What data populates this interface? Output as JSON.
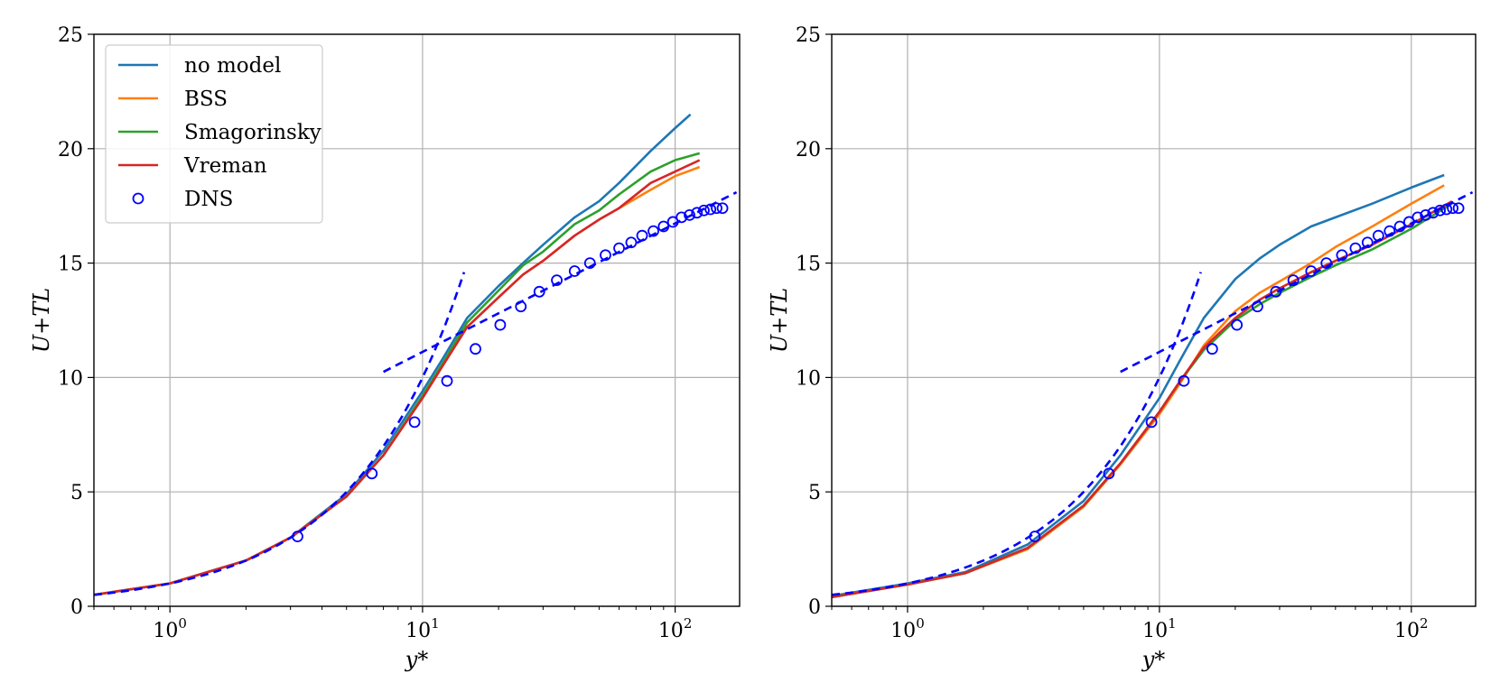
{
  "chart_data": [
    {
      "type": "line",
      "xscale": "log",
      "xlim": [
        0.5,
        180
      ],
      "ylim": [
        0,
        25
      ],
      "xlabel": "y*",
      "ylabel": "U+TL",
      "xticks": [
        {
          "v": 1,
          "label": "10",
          "exp": "0"
        },
        {
          "v": 10,
          "label": "10",
          "exp": "1"
        },
        {
          "v": 100,
          "label": "10",
          "exp": "2"
        }
      ],
      "yticks": [
        0,
        5,
        10,
        15,
        20,
        25
      ],
      "grid": true,
      "legend": {
        "position": "top-left"
      },
      "series": [
        {
          "name": "no model",
          "color": "#1f77b4",
          "x": [
            0.5,
            1,
            2,
            3,
            5,
            7,
            10,
            12,
            15,
            20,
            25,
            30,
            40,
            50,
            60,
            80,
            100,
            115
          ],
          "y": [
            0.5,
            1.0,
            2.0,
            3.0,
            4.9,
            6.8,
            9.4,
            10.8,
            12.6,
            14.0,
            15.0,
            15.8,
            17.0,
            17.7,
            18.5,
            19.9,
            20.9,
            21.5
          ]
        },
        {
          "name": "BSS",
          "color": "#ff7f0e",
          "x": [
            0.5,
            1,
            2,
            3,
            5,
            7,
            10,
            12,
            15,
            20,
            25,
            30,
            40,
            50,
            60,
            80,
            100,
            125
          ],
          "y": [
            0.5,
            1.0,
            2.0,
            3.0,
            4.8,
            6.6,
            9.1,
            10.5,
            12.2,
            13.5,
            14.5,
            15.1,
            16.2,
            16.9,
            17.4,
            18.2,
            18.8,
            19.2
          ]
        },
        {
          "name": "Smagorinsky",
          "color": "#2ca02c",
          "x": [
            0.5,
            1,
            2,
            3,
            5,
            7,
            10,
            12,
            15,
            20,
            25,
            30,
            40,
            50,
            60,
            80,
            100,
            125
          ],
          "y": [
            0.5,
            1.0,
            2.0,
            3.0,
            4.8,
            6.6,
            9.2,
            10.6,
            12.4,
            13.8,
            14.9,
            15.5,
            16.7,
            17.3,
            18.0,
            19.0,
            19.5,
            19.8
          ]
        },
        {
          "name": "Vreman",
          "color": "#d62728",
          "x": [
            0.5,
            1,
            2,
            3,
            5,
            7,
            10,
            12,
            15,
            20,
            25,
            30,
            40,
            50,
            60,
            80,
            100,
            125
          ],
          "y": [
            0.5,
            1.0,
            2.0,
            3.0,
            4.8,
            6.6,
            9.1,
            10.5,
            12.2,
            13.5,
            14.5,
            15.1,
            16.2,
            16.9,
            17.4,
            18.5,
            19.0,
            19.5
          ]
        }
      ],
      "dns": {
        "name": "DNS",
        "color": "#0000ff",
        "x": [
          3.2,
          6.3,
          9.3,
          12.5,
          16.2,
          20.3,
          24.5,
          29,
          34,
          40,
          46,
          53,
          60,
          67,
          74,
          82,
          90,
          98,
          106,
          114,
          122,
          130,
          138,
          146,
          154
        ],
        "y": [
          3.05,
          5.8,
          8.05,
          9.85,
          11.25,
          12.3,
          13.1,
          13.75,
          14.25,
          14.65,
          15.0,
          15.35,
          15.65,
          15.9,
          16.2,
          16.4,
          16.6,
          16.8,
          17.0,
          17.1,
          17.2,
          17.3,
          17.35,
          17.4,
          17.4
        ]
      },
      "reference_lines": [
        {
          "kind": "viscous",
          "color": "#0000ff",
          "x_from": 0.5,
          "x_to": 14.6
        },
        {
          "kind": "log",
          "color": "#0000ff",
          "x_from": 7,
          "x_to": 175,
          "kappa": 0.41,
          "B": 5.5
        }
      ]
    },
    {
      "type": "line",
      "xscale": "log",
      "xlim": [
        0.5,
        180
      ],
      "ylim": [
        0,
        25
      ],
      "xlabel": "y*",
      "ylabel": "U+TL",
      "xticks": [
        {
          "v": 1,
          "label": "10",
          "exp": "0"
        },
        {
          "v": 10,
          "label": "10",
          "exp": "1"
        },
        {
          "v": 100,
          "label": "10",
          "exp": "2"
        }
      ],
      "yticks": [
        0,
        5,
        10,
        15,
        20,
        25
      ],
      "grid": true,
      "series": [
        {
          "name": "no model",
          "color": "#1f77b4",
          "x": [
            0.5,
            1,
            1.7,
            3,
            5,
            7,
            10,
            12,
            15,
            20,
            25,
            30,
            40,
            50,
            70,
            100,
            135
          ],
          "y": [
            0.45,
            1.0,
            1.5,
            2.7,
            4.6,
            6.6,
            9.1,
            10.7,
            12.6,
            14.3,
            15.2,
            15.8,
            16.6,
            17.0,
            17.6,
            18.3,
            18.85
          ]
        },
        {
          "name": "BSS",
          "color": "#ff7f0e",
          "x": [
            0.5,
            1,
            1.7,
            3,
            5,
            7,
            10,
            12,
            15,
            20,
            25,
            30,
            40,
            50,
            70,
            100,
            135
          ],
          "y": [
            0.4,
            0.95,
            1.45,
            2.5,
            4.35,
            6.2,
            8.4,
            9.7,
            11.4,
            12.9,
            13.7,
            14.2,
            15.0,
            15.7,
            16.6,
            17.6,
            18.4
          ]
        },
        {
          "name": "Smagorinsky",
          "color": "#2ca02c",
          "x": [
            0.5,
            1,
            1.7,
            3,
            5,
            7,
            10,
            12,
            15,
            20,
            25,
            30,
            40,
            50,
            70,
            100,
            145
          ],
          "y": [
            0.4,
            0.95,
            1.45,
            2.55,
            4.4,
            6.25,
            8.5,
            9.8,
            11.2,
            12.5,
            13.2,
            13.7,
            14.4,
            14.9,
            15.6,
            16.5,
            17.6
          ]
        },
        {
          "name": "Vreman",
          "color": "#d62728",
          "x": [
            0.5,
            1,
            1.7,
            3,
            5,
            7,
            10,
            12,
            15,
            20,
            25,
            30,
            40,
            50,
            70,
            100,
            145
          ],
          "y": [
            0.4,
            0.95,
            1.45,
            2.55,
            4.4,
            6.25,
            8.5,
            9.8,
            11.3,
            12.6,
            13.4,
            13.9,
            14.6,
            15.1,
            15.8,
            16.7,
            17.7
          ]
        }
      ],
      "dns": {
        "name": "DNS",
        "color": "#0000ff",
        "x": [
          3.2,
          6.3,
          9.3,
          12.5,
          16.2,
          20.3,
          24.5,
          29,
          34,
          40,
          46,
          53,
          60,
          67,
          74,
          82,
          90,
          98,
          106,
          114,
          122,
          130,
          138,
          146,
          154
        ],
        "y": [
          3.05,
          5.8,
          8.05,
          9.85,
          11.25,
          12.3,
          13.1,
          13.75,
          14.25,
          14.65,
          15.0,
          15.35,
          15.65,
          15.9,
          16.2,
          16.4,
          16.6,
          16.8,
          17.0,
          17.1,
          17.2,
          17.3,
          17.35,
          17.4,
          17.4
        ]
      },
      "reference_lines": [
        {
          "kind": "viscous",
          "color": "#0000ff",
          "x_from": 0.5,
          "x_to": 14.6
        },
        {
          "kind": "log",
          "color": "#0000ff",
          "x_from": 7,
          "x_to": 175,
          "kappa": 0.41,
          "B": 5.5
        }
      ]
    }
  ]
}
